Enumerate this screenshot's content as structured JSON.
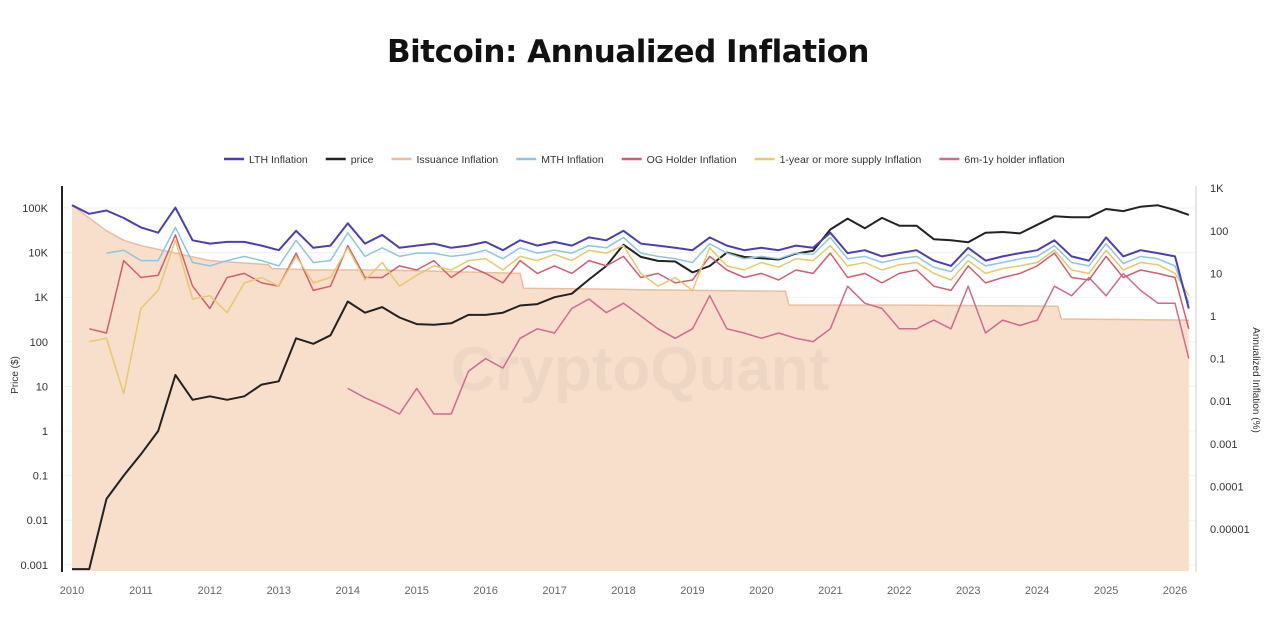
{
  "chart_data": {
    "type": "line",
    "title": "Bitcoin: Annualized Inflation",
    "watermark": "CryptoQuant",
    "ylabel_left": "Price ($)",
    "ylabel_right": "Annualized Inflation (%)",
    "y_left_scale": "log",
    "y_right_scale": "log",
    "y_left_ticks": [
      "100K",
      "10K",
      "1K",
      "100",
      "10",
      "1",
      "0.1",
      "0.01",
      "0.001"
    ],
    "y_left_tick_values": [
      100000,
      10000,
      1000,
      100,
      10,
      1,
      0.1,
      0.01,
      0.001
    ],
    "y_right_ticks": [
      "1K",
      "100",
      "10",
      "1",
      "0.1",
      "0.01",
      "0.001",
      "0.0001",
      "0.00001"
    ],
    "y_right_tick_values": [
      1000,
      100,
      10,
      1,
      0.1,
      0.01,
      0.001,
      0.0001,
      1e-05
    ],
    "x_ticks": [
      "2010",
      "2011",
      "2012",
      "2013",
      "2014",
      "2015",
      "2016",
      "2017",
      "2018",
      "2019",
      "2020",
      "2021",
      "2022",
      "2023",
      "2024",
      "2025",
      "2026"
    ],
    "xlim": [
      2010,
      2026.2
    ],
    "legend_position": "top",
    "grid": true,
    "x": [
      2010,
      2010.25,
      2010.5,
      2010.75,
      2011,
      2011.25,
      2011.5,
      2011.75,
      2012,
      2012.25,
      2012.5,
      2012.75,
      2013,
      2013.25,
      2013.5,
      2013.75,
      2014,
      2014.25,
      2014.5,
      2014.75,
      2015,
      2015.25,
      2015.5,
      2015.75,
      2016,
      2016.25,
      2016.5,
      2016.75,
      2017,
      2017.25,
      2017.5,
      2017.75,
      2018,
      2018.25,
      2018.5,
      2018.75,
      2019,
      2019.25,
      2019.5,
      2019.75,
      2020,
      2020.25,
      2020.5,
      2020.75,
      2021,
      2021.25,
      2021.5,
      2021.75,
      2022,
      2022.25,
      2022.5,
      2022.75,
      2023,
      2023.25,
      2023.5,
      2023.75,
      2024,
      2024.25,
      2024.5,
      2024.75,
      2025,
      2025.25,
      2025.5,
      2025.75,
      2026,
      2026.2
    ],
    "series": [
      {
        "name": "LTH Inflation",
        "axis": "right",
        "color": "#4b40b3",
        "values": [
          400,
          250,
          300,
          200,
          120,
          90,
          350,
          60,
          50,
          55,
          55,
          45,
          35,
          100,
          40,
          45,
          150,
          50,
          80,
          40,
          45,
          50,
          40,
          45,
          55,
          35,
          60,
          45,
          55,
          45,
          70,
          60,
          100,
          50,
          45,
          40,
          35,
          70,
          45,
          35,
          40,
          35,
          45,
          40,
          90,
          30,
          35,
          25,
          30,
          35,
          20,
          15,
          40,
          20,
          25,
          30,
          35,
          60,
          25,
          20,
          70,
          25,
          35,
          30,
          25,
          1.5
        ]
      },
      {
        "name": "price",
        "axis": "left",
        "color": "#222222",
        "values": [
          0.0008,
          0.0008,
          0.03,
          0.1,
          0.3,
          1,
          18,
          5,
          6,
          5,
          6,
          11,
          13,
          120,
          90,
          140,
          800,
          450,
          600,
          350,
          250,
          240,
          260,
          400,
          400,
          450,
          650,
          700,
          1000,
          1200,
          2500,
          5000,
          15000,
          8000,
          6500,
          6300,
          3600,
          5000,
          10000,
          8000,
          7500,
          7000,
          9500,
          11000,
          33000,
          58000,
          35000,
          60000,
          40000,
          40000,
          20000,
          19000,
          17000,
          28000,
          29000,
          27000,
          42000,
          65000,
          62000,
          62000,
          95000,
          85000,
          107000,
          115000,
          90000,
          70000
        ]
      },
      {
        "name": "Issuance Inflation",
        "axis": "right",
        "color": "#ebbd9c",
        "fill": "#f8dfcc",
        "x": [
          2010,
          2010.25,
          2010.5,
          2010.75,
          2011,
          2011.5,
          2012,
          2012.85,
          2012.9,
          2013.5,
          2014.5,
          2015.5,
          2016.5,
          2016.55,
          2018,
          2019,
          2020.35,
          2020.4,
          2022,
          2024.3,
          2024.35,
          2026.2
        ],
        "values": [
          400,
          200,
          100,
          60,
          45,
          30,
          20,
          16,
          13,
          12,
          12,
          11,
          10,
          4.5,
          4.2,
          4,
          3.8,
          1.8,
          1.8,
          1.7,
          0.85,
          0.8
        ]
      },
      {
        "name": "MTH Inflation",
        "axis": "right",
        "color": "#8ec6df",
        "values": [
          null,
          null,
          30,
          35,
          20,
          20,
          120,
          18,
          15,
          20,
          25,
          20,
          15,
          60,
          18,
          20,
          90,
          25,
          40,
          25,
          30,
          30,
          25,
          28,
          35,
          22,
          40,
          30,
          35,
          30,
          45,
          40,
          70,
          30,
          25,
          22,
          18,
          50,
          30,
          22,
          25,
          22,
          30,
          28,
          70,
          22,
          25,
          18,
          22,
          25,
          14,
          11,
          28,
          15,
          18,
          22,
          25,
          45,
          18,
          15,
          50,
          17,
          25,
          22,
          15,
          2
        ]
      },
      {
        "name": "OG Holder Inflation",
        "axis": "right",
        "color": "#cf5f70",
        "values": [
          null,
          0.5,
          0.4,
          20,
          8,
          9,
          80,
          5,
          1.5,
          8,
          10,
          6,
          5,
          30,
          4,
          5,
          45,
          8,
          8,
          15,
          12,
          20,
          8,
          15,
          10,
          6,
          20,
          10,
          15,
          10,
          20,
          15,
          25,
          8,
          10,
          6,
          7,
          25,
          12,
          8,
          10,
          7,
          12,
          10,
          30,
          8,
          10,
          6,
          10,
          12,
          5,
          4,
          15,
          6,
          8,
          10,
          15,
          30,
          8,
          7,
          25,
          8,
          12,
          10,
          8,
          0.5
        ]
      },
      {
        "name": "1-year or more supply Inflation",
        "axis": "right",
        "color": "#e7c86a",
        "values": [
          null,
          0.25,
          0.3,
          0.015,
          1.5,
          4,
          60,
          2.5,
          3,
          1.2,
          6,
          8,
          5,
          25,
          6,
          8,
          40,
          7,
          18,
          5,
          9,
          15,
          12,
          20,
          22,
          12,
          25,
          20,
          28,
          20,
          35,
          30,
          45,
          10,
          5,
          8,
          4,
          40,
          15,
          12,
          18,
          14,
          22,
          20,
          45,
          15,
          18,
          12,
          16,
          18,
          10,
          7,
          20,
          10,
          13,
          15,
          18,
          35,
          12,
          10,
          35,
          12,
          18,
          16,
          10,
          3
        ]
      },
      {
        "name": "6m-1y holder inflation",
        "axis": "right",
        "color": "#d06a8e",
        "values": [
          null,
          null,
          null,
          null,
          null,
          null,
          null,
          null,
          null,
          null,
          null,
          null,
          null,
          null,
          null,
          null,
          0.02,
          0.012,
          0.008,
          0.005,
          0.02,
          0.005,
          0.005,
          0.05,
          0.1,
          0.06,
          0.3,
          0.5,
          0.4,
          1.5,
          2.5,
          1.2,
          2,
          1,
          0.5,
          0.3,
          0.5,
          3,
          0.5,
          0.4,
          0.3,
          0.4,
          0.3,
          0.25,
          0.5,
          5,
          2,
          1.5,
          0.5,
          0.5,
          0.8,
          0.5,
          5,
          0.4,
          0.8,
          0.6,
          0.8,
          5,
          3,
          8,
          3,
          10,
          4,
          2,
          2,
          0.1
        ]
      }
    ]
  }
}
